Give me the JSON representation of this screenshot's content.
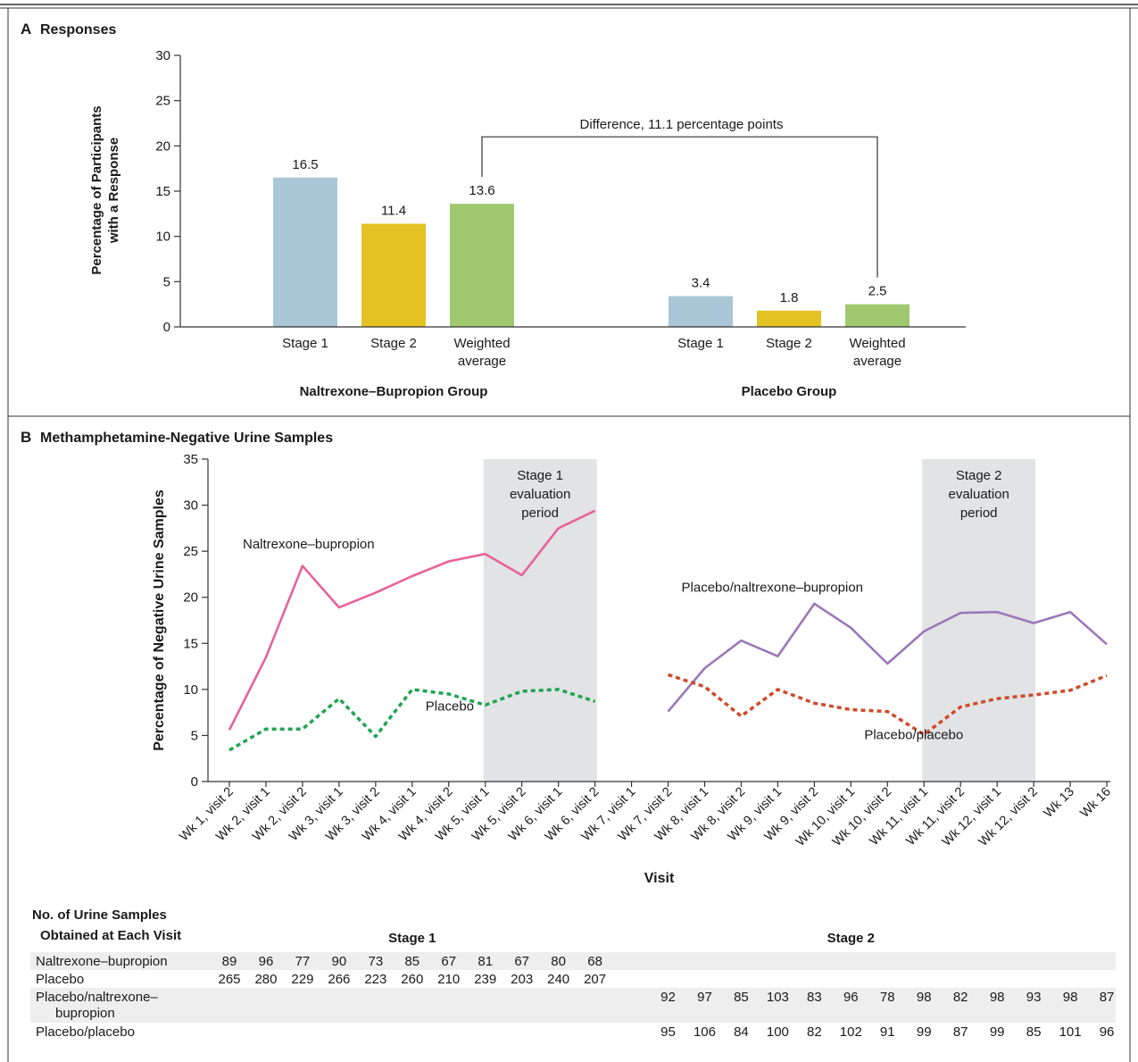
{
  "chart_data": [
    {
      "panel_letter": "A",
      "title": "Responses",
      "type": "bar",
      "ylabel": "Percentage of Participants with a Response",
      "ylabel_lines": [
        "Percentage of Participants",
        "with a Response"
      ],
      "ylim": [
        0,
        30
      ],
      "yticks": [
        0,
        5,
        10,
        15,
        20,
        25,
        30
      ],
      "categories": [
        "Stage 1",
        "Stage 2",
        "Weighted average"
      ],
      "groups": [
        {
          "name": "Naltrexone–Bupropion Group",
          "bars": [
            {
              "label_lines": [
                "Stage 1"
              ],
              "value": 16.5,
              "value_label": "16.5",
              "color": "#a9c7d7"
            },
            {
              "label_lines": [
                "Stage 2"
              ],
              "value": 11.4,
              "value_label": "11.4",
              "color": "#e4c224"
            },
            {
              "label_lines": [
                "Weighted",
                "average"
              ],
              "value": 13.6,
              "value_label": "13.6",
              "color": "#9fc86f"
            }
          ]
        },
        {
          "name": "Placebo Group",
          "bars": [
            {
              "label_lines": [
                "Stage 1"
              ],
              "value": 3.4,
              "value_label": "3.4",
              "color": "#a9c7d7"
            },
            {
              "label_lines": [
                "Stage 2"
              ],
              "value": 1.8,
              "value_label": "1.8",
              "color": "#e4c224"
            },
            {
              "label_lines": [
                "Weighted",
                "average"
              ],
              "value": 2.5,
              "value_label": "2.5",
              "color": "#9fc86f"
            }
          ]
        }
      ],
      "annotation": {
        "text": "Difference, 11.1 percentage points",
        "level": 21.0
      }
    },
    {
      "panel_letter": "B",
      "title": "Methamphetamine-Negative Urine Samples",
      "type": "line",
      "xlabel": "Visit",
      "ylabel": "Percentage of Negative Urine Samples",
      "ylim": [
        0,
        35
      ],
      "yticks": [
        0,
        5,
        10,
        15,
        20,
        25,
        30,
        35
      ],
      "x": [
        "Wk 1, visit 2",
        "Wk 2, visit 1",
        "Wk 2, visit 2",
        "Wk 3, visit 1",
        "Wk 3, visit 2",
        "Wk 4, visit 1",
        "Wk 4, visit 2",
        "Wk 5, visit 1",
        "Wk 5, visit 2",
        "Wk 6, visit 1",
        "Wk 6, visit 2",
        "Wk 7, visit 1",
        "Wk 7, visit 2",
        "Wk 8, visit 1",
        "Wk 8, visit 2",
        "Wk 9, visit 1",
        "Wk 9, visit 2",
        "Wk 10, visit 1",
        "Wk 10, visit 2",
        "Wk 11, visit 1",
        "Wk 11, visit 2",
        "Wk 12, visit 1",
        "Wk 12, visit 2",
        "Wk 13",
        "Wk 16"
      ],
      "shaded_regions": [
        {
          "from": "Wk 5, visit 1",
          "to": "Wk 6, visit 2",
          "label_lines": [
            "Stage 1",
            "evaluation",
            "period"
          ],
          "color": "#e2e3e5"
        },
        {
          "from": "Wk 11, visit 1",
          "to": "Wk 12, visit 2",
          "label_lines": [
            "Stage 2",
            "evaluation",
            "period"
          ],
          "color": "#e2e3e5"
        }
      ],
      "series": [
        {
          "name": "Naltrexone–bupropion",
          "color": "#e8629a",
          "dash": "solid",
          "label_anchor": {
            "x": "Wk 1, visit 2",
            "y": 25.3
          },
          "points": [
            [
              "Wk 1, visit 2",
              5.6
            ],
            [
              "Wk 2, visit 1",
              13.5
            ],
            [
              "Wk 2, visit 2",
              23.4
            ],
            [
              "Wk 3, visit 1",
              18.9
            ],
            [
              "Wk 3, visit 2",
              20.5
            ],
            [
              "Wk 4, visit 1",
              22.3
            ],
            [
              "Wk 4, visit 2",
              23.9
            ],
            [
              "Wk 5, visit 1",
              24.7
            ],
            [
              "Wk 5, visit 2",
              22.4
            ],
            [
              "Wk 6, visit 1",
              27.5
            ],
            [
              "Wk 6, visit 2",
              29.4
            ]
          ]
        },
        {
          "name": "Placebo",
          "color": "#1fa552",
          "dash": "dotted",
          "label_anchor": {
            "x": "Wk 4, visit 1",
            "y": 7.7
          },
          "points": [
            [
              "Wk 1, visit 2",
              3.4
            ],
            [
              "Wk 2, visit 1",
              5.7
            ],
            [
              "Wk 2, visit 2",
              5.7
            ],
            [
              "Wk 3, visit 1",
              9.0
            ],
            [
              "Wk 3, visit 2",
              4.9
            ],
            [
              "Wk 4, visit 1",
              10.0
            ],
            [
              "Wk 4, visit 2",
              9.5
            ],
            [
              "Wk 5, visit 1",
              8.3
            ],
            [
              "Wk 5, visit 2",
              9.8
            ],
            [
              "Wk 6, visit 1",
              10.0
            ],
            [
              "Wk 6, visit 2",
              8.7
            ]
          ]
        },
        {
          "name": "Placebo/naltrexone–bupropion",
          "color": "#9b78b8",
          "dash": "solid",
          "label_anchor": {
            "x": "Wk 7, visit 2",
            "y": 20.6
          },
          "points": [
            [
              "Wk 7, visit 2",
              7.6
            ],
            [
              "Wk 8, visit 1",
              12.3
            ],
            [
              "Wk 8, visit 2",
              15.3
            ],
            [
              "Wk 9, visit 1",
              13.6
            ],
            [
              "Wk 9, visit 2",
              19.3
            ],
            [
              "Wk 10, visit 1",
              16.7
            ],
            [
              "Wk 10, visit 2",
              12.8
            ],
            [
              "Wk 11, visit 1",
              16.3
            ],
            [
              "Wk 11, visit 2",
              18.3
            ],
            [
              "Wk 12, visit 1",
              18.4
            ],
            [
              "Wk 12, visit 2",
              17.2
            ],
            [
              "Wk 13",
              18.4
            ],
            [
              "Wk 16",
              14.9
            ]
          ]
        },
        {
          "name": "Placebo/placebo",
          "color": "#cf4a2a",
          "dash": "dotted",
          "label_anchor": {
            "x": "Wk 10, visit 1",
            "y": 4.6
          },
          "points": [
            [
              "Wk 7, visit 2",
              11.6
            ],
            [
              "Wk 8, visit 1",
              10.3
            ],
            [
              "Wk 8, visit 2",
              7.1
            ],
            [
              "Wk 9, visit 1",
              10.0
            ],
            [
              "Wk 9, visit 2",
              8.5
            ],
            [
              "Wk 10, visit 1",
              7.8
            ],
            [
              "Wk 10, visit 2",
              7.6
            ],
            [
              "Wk 11, visit 1",
              5.1
            ],
            [
              "Wk 11, visit 2",
              8.1
            ],
            [
              "Wk 12, visit 1",
              9.0
            ],
            [
              "Wk 12, visit 2",
              9.4
            ],
            [
              "Wk 13",
              9.9
            ],
            [
              "Wk 16",
              11.5
            ]
          ]
        }
      ]
    },
    {
      "type": "table",
      "title_lines": [
        "No. of Urine Samples",
        "Obtained at Each Visit"
      ],
      "stage_headers": [
        {
          "label": "Stage 1",
          "center": "Wk 4, visit 1"
        },
        {
          "label": "Stage 2",
          "center": "Wk 10, visit 1"
        }
      ],
      "rows": [
        {
          "label_lines": [
            "Naltrexone–bupropion"
          ],
          "shaded": true,
          "start": "Wk 1, visit 2",
          "values": [
            89,
            96,
            77,
            90,
            73,
            85,
            67,
            81,
            67,
            80,
            68
          ]
        },
        {
          "label_lines": [
            "Placebo"
          ],
          "shaded": false,
          "start": "Wk 1, visit 2",
          "values": [
            265,
            280,
            229,
            266,
            223,
            260,
            210,
            239,
            203,
            240,
            207
          ]
        },
        {
          "label_lines": [
            "Placebo/naltrexone–",
            "bupropion"
          ],
          "shaded": true,
          "start": "Wk 7, visit 2",
          "values": [
            92,
            97,
            85,
            103,
            83,
            96,
            78,
            98,
            82,
            98,
            93,
            98,
            87
          ]
        },
        {
          "label_lines": [
            "Placebo/placebo"
          ],
          "shaded": false,
          "start": "Wk 7, visit 2",
          "values": [
            95,
            106,
            84,
            100,
            82,
            102,
            91,
            99,
            87,
            99,
            85,
            101,
            96
          ]
        }
      ]
    }
  ]
}
